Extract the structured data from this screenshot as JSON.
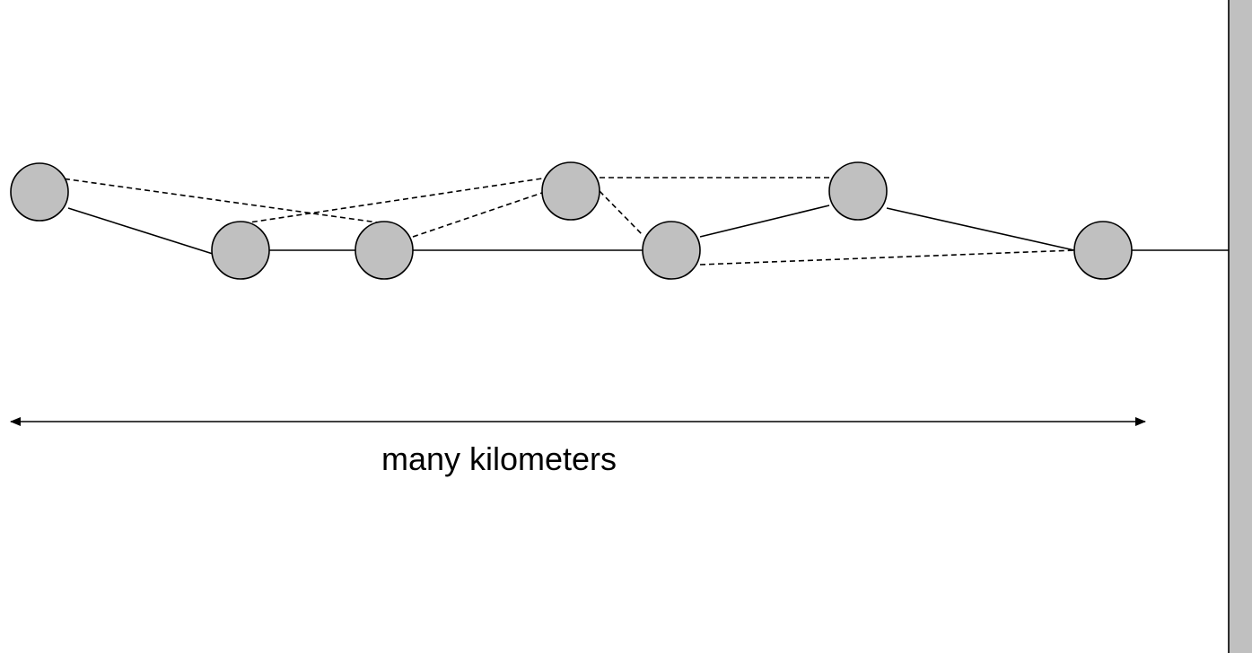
{
  "diagram": {
    "distance_label": "many kilometers",
    "node_fill": "#c0c0c0",
    "wall_fill": "#c0c0c0",
    "nodes": [
      {
        "id": "n1"
      },
      {
        "id": "n2"
      },
      {
        "id": "n3"
      },
      {
        "id": "n4"
      },
      {
        "id": "n5"
      },
      {
        "id": "n6"
      },
      {
        "id": "n7"
      }
    ],
    "links": [
      {
        "from": "n1",
        "to": "n2",
        "style": "solid"
      },
      {
        "from": "n2",
        "to": "n3",
        "style": "solid"
      },
      {
        "from": "n3",
        "to": "n5",
        "style": "solid"
      },
      {
        "from": "n5",
        "to": "n6",
        "style": "solid"
      },
      {
        "from": "n6",
        "to": "n7",
        "style": "solid"
      },
      {
        "from": "n7",
        "to": "wall",
        "style": "solid"
      },
      {
        "from": "n1",
        "to": "n3",
        "style": "dashed"
      },
      {
        "from": "n2",
        "to": "n4",
        "style": "dashed"
      },
      {
        "from": "n3",
        "to": "n4",
        "style": "dashed"
      },
      {
        "from": "n4",
        "to": "n6",
        "style": "dashed"
      },
      {
        "from": "n4",
        "to": "n5",
        "style": "dashed"
      },
      {
        "from": "n5",
        "to": "n7",
        "style": "dashed"
      }
    ]
  }
}
